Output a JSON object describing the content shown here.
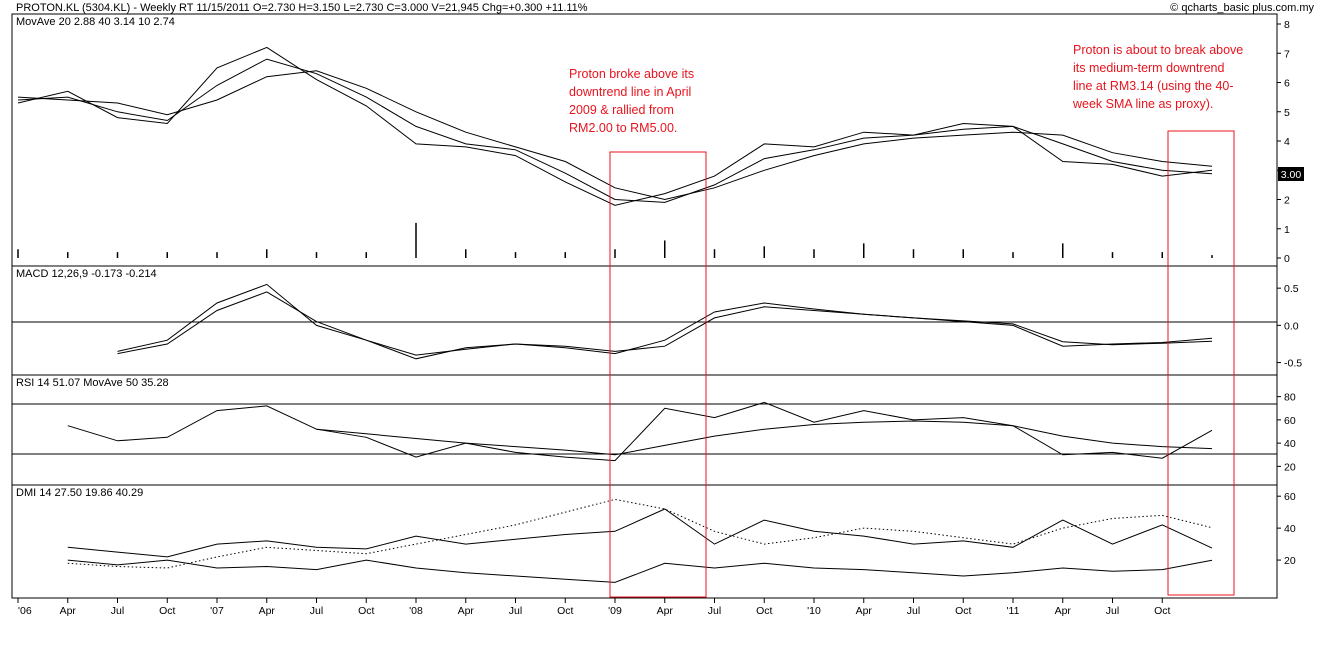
{
  "header": {
    "ohlc_line": "PROTON.KL (5304.KL) - Weekly RT  11/15/2011  O=2.730  H=3.150  L=2.730  C=3.000  V=21,945  Chg=+0.300  +11.11%",
    "source": "© qcharts_basic plus.com.my",
    "mov_ave_line": "MovAve 20  2.88   40  3.14   10  2.74",
    "last_price_badge": "3.00"
  },
  "panels": {
    "macd_label": "MACD 12,26,9  -0.173  -0.214",
    "rsi_label": "RSI 14  51.07   MovAve 50  35.28",
    "dmi_label": "DMI 14  27.50  19.86  40.29"
  },
  "annotations": [
    {
      "lines": [
        "Proton broke above its",
        "downtrend line in April",
        "2009 & rallied from",
        "RM2.00 to RM5.00."
      ]
    },
    {
      "lines": [
        "Proton is about to break above",
        "its medium-term downtrend",
        "line at RM3.14 (using the 40-",
        "week SMA line as proxy)."
      ]
    }
  ],
  "colors": {
    "annotation": "#e8141e",
    "line": "#000000",
    "background": "#ffffff"
  },
  "chart_data": [
    {
      "type": "line",
      "name": "price",
      "y_ticks": [
        "8",
        "7",
        "6",
        "5",
        "4",
        "3",
        "2",
        "1",
        "0"
      ],
      "ylim": [
        0,
        8
      ],
      "x": [
        "'06",
        "Apr",
        "Jul",
        "Oct",
        "'07",
        "Apr",
        "Jul",
        "Oct",
        "'08",
        "Apr",
        "Jul",
        "Oct",
        "'09",
        "Apr",
        "Jul",
        "Oct",
        "'10",
        "Apr",
        "Jul",
        "Oct",
        "'11",
        "Apr",
        "Jul",
        "Oct",
        "2011-11-15"
      ],
      "series": [
        {
          "values": [
            5.3,
            5.7,
            4.8,
            4.6,
            6.5,
            7.2,
            6.1,
            5.2,
            3.9,
            3.8,
            3.5,
            2.6,
            1.8,
            2.2,
            2.8,
            3.9,
            3.8,
            4.3,
            4.2,
            4.6,
            4.5,
            3.3,
            3.2,
            2.8,
            3.0
          ]
        },
        {
          "values": [
            5.4,
            5.5,
            5.0,
            4.7,
            5.9,
            6.8,
            6.3,
            5.5,
            4.5,
            3.9,
            3.7,
            2.9,
            2.0,
            1.9,
            2.5,
            3.4,
            3.7,
            4.1,
            4.2,
            4.4,
            4.5,
            3.9,
            3.3,
            3.0,
            2.88
          ]
        },
        {
          "values": [
            5.5,
            5.4,
            5.3,
            4.9,
            5.4,
            6.2,
            6.4,
            5.8,
            5.0,
            4.3,
            3.8,
            3.3,
            2.4,
            2.0,
            2.4,
            3.0,
            3.5,
            3.9,
            4.1,
            4.2,
            4.3,
            4.2,
            3.6,
            3.3,
            3.14
          ]
        }
      ],
      "volume": [
        0.3,
        0.2,
        0.2,
        0.2,
        0.2,
        0.3,
        0.2,
        0.2,
        1.2,
        0.3,
        0.2,
        0.2,
        0.3,
        0.6,
        0.3,
        0.4,
        0.3,
        0.5,
        0.3,
        0.3,
        0.2,
        0.5,
        0.2,
        0.2,
        0.1
      ]
    },
    {
      "type": "line",
      "name": "MACD",
      "y_ticks": [
        "0.5",
        "0.0",
        "-0.5"
      ],
      "ylim": [
        -0.6,
        0.65
      ],
      "x": [
        "'06",
        "Apr",
        "Jul",
        "Oct",
        "'07",
        "Apr",
        "Jul",
        "Oct",
        "'08",
        "Apr",
        "Jul",
        "Oct",
        "'09",
        "Apr",
        "Jul",
        "Oct",
        "'10",
        "Apr",
        "Jul",
        "Oct",
        "'11",
        "Apr",
        "Jul",
        "Oct",
        "2011-11-15"
      ],
      "series": [
        {
          "values": [
            null,
            null,
            -0.35,
            -0.2,
            0.3,
            0.55,
            0.0,
            -0.2,
            -0.45,
            -0.3,
            -0.25,
            -0.3,
            -0.38,
            -0.2,
            0.18,
            0.3,
            0.22,
            0.15,
            0.1,
            0.05,
            0.0,
            -0.28,
            -0.25,
            -0.23,
            -0.173
          ]
        },
        {
          "values": [
            null,
            null,
            -0.38,
            -0.25,
            0.2,
            0.45,
            0.05,
            -0.2,
            -0.4,
            -0.32,
            -0.25,
            -0.28,
            -0.35,
            -0.28,
            0.1,
            0.25,
            0.2,
            0.15,
            0.1,
            0.06,
            0.02,
            -0.22,
            -0.26,
            -0.24,
            -0.214
          ]
        }
      ]
    },
    {
      "type": "line",
      "name": "RSI",
      "y_ticks": [
        "80",
        "60",
        "40",
        "20"
      ],
      "ylim": [
        10,
        90
      ],
      "x": [
        "'06",
        "Apr",
        "Jul",
        "Oct",
        "'07",
        "Apr",
        "Jul",
        "Oct",
        "'08",
        "Apr",
        "Jul",
        "Oct",
        "'09",
        "Apr",
        "Jul",
        "Oct",
        "'10",
        "Apr",
        "Jul",
        "Oct",
        "'11",
        "Apr",
        "Jul",
        "Oct",
        "2011-11-15"
      ],
      "series": [
        {
          "values": [
            null,
            55,
            42,
            45,
            68,
            72,
            52,
            45,
            28,
            40,
            32,
            28,
            25,
            70,
            62,
            75,
            58,
            68,
            60,
            62,
            55,
            30,
            32,
            27,
            51.07
          ]
        },
        {
          "values": [
            null,
            null,
            null,
            null,
            null,
            null,
            52,
            48,
            44,
            40,
            37,
            34,
            30,
            38,
            46,
            52,
            56,
            58,
            59,
            58,
            55,
            46,
            40,
            37,
            35.28
          ]
        }
      ]
    },
    {
      "type": "line",
      "name": "DMI",
      "y_ticks": [
        "60",
        "40",
        "20"
      ],
      "ylim": [
        0,
        62
      ],
      "x": [
        "'06",
        "Apr",
        "Jul",
        "Oct",
        "'07",
        "Apr",
        "Jul",
        "Oct",
        "'08",
        "Apr",
        "Jul",
        "Oct",
        "'09",
        "Apr",
        "Jul",
        "Oct",
        "'10",
        "Apr",
        "Jul",
        "Oct",
        "'11",
        "Apr",
        "Jul",
        "Oct",
        "2011-11-15"
      ],
      "series": [
        {
          "values": [
            null,
            28,
            25,
            22,
            30,
            32,
            28,
            27,
            35,
            30,
            33,
            36,
            38,
            52,
            30,
            45,
            38,
            35,
            30,
            32,
            28,
            45,
            30,
            42,
            27.5
          ]
        },
        {
          "values": [
            null,
            20,
            17,
            20,
            15,
            16,
            14,
            20,
            15,
            12,
            10,
            8,
            6,
            18,
            15,
            18,
            15,
            14,
            12,
            10,
            12,
            15,
            13,
            14,
            19.86
          ]
        },
        {
          "values": [
            null,
            18,
            16,
            15,
            22,
            28,
            26,
            24,
            30,
            36,
            42,
            50,
            58,
            52,
            38,
            30,
            34,
            40,
            38,
            34,
            30,
            40,
            46,
            48,
            40.29
          ]
        }
      ]
    }
  ],
  "x_axis": {
    "tick_labels": [
      "'06",
      "Apr",
      "Jul",
      "Oct",
      "'07",
      "Apr",
      "Jul",
      "Oct",
      "'08",
      "Apr",
      "Jul",
      "Oct",
      "'09",
      "Apr",
      "Jul",
      "Oct",
      "'10",
      "Apr",
      "Jul",
      "Oct",
      "'11",
      "Apr",
      "Jul",
      "Oct"
    ]
  }
}
